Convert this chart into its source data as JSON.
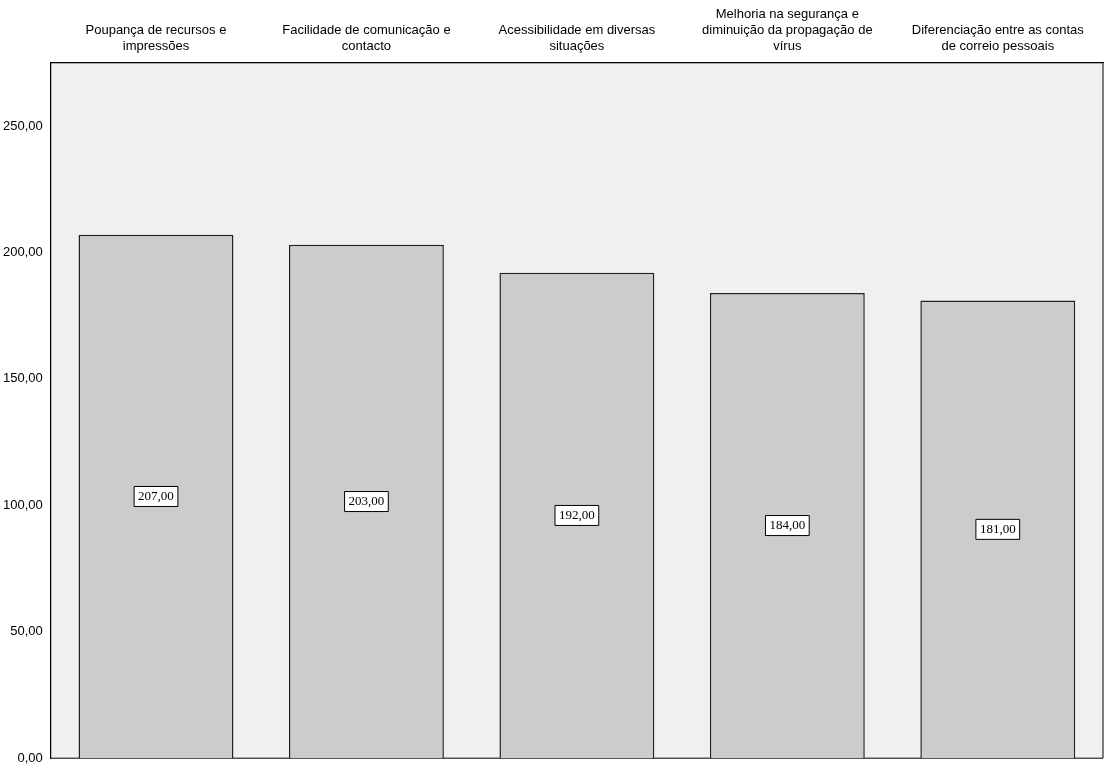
{
  "chart_data": {
    "type": "bar",
    "categories": [
      "Poupança de recursos e impressões",
      "Facilidade de comunicação e contacto",
      "Acessibilidade em diversas situações",
      "Melhoria na segurança e diminuição da propagação de vírus",
      "Diferenciação entre as contas de correio pessoais"
    ],
    "values": [
      207,
      203,
      192,
      184,
      181
    ],
    "value_labels": [
      "207,00",
      "203,00",
      "192,00",
      "184,00",
      "181,00"
    ],
    "color": "#cccccc",
    "ylim": [
      0,
      275
    ],
    "yticks": [
      {
        "value": 0,
        "label": "0,00"
      },
      {
        "value": 50,
        "label": "50,00"
      },
      {
        "value": 100,
        "label": "100,00"
      },
      {
        "value": 150,
        "label": "150,00"
      },
      {
        "value": 200,
        "label": "200,00"
      },
      {
        "value": 250,
        "label": "250,00"
      }
    ],
    "grid": false,
    "legend": false
  }
}
